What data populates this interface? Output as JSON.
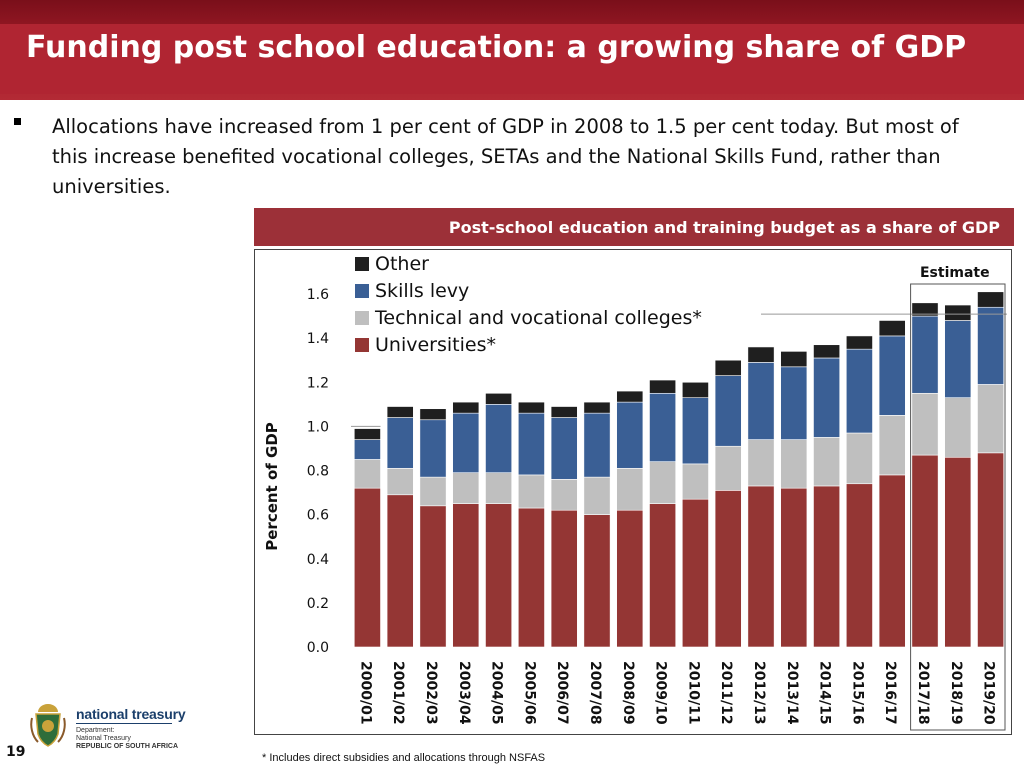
{
  "title": "Funding post school education: a growing share of GDP",
  "bullet": "Allocations have increased from 1 per cent of GDP in 2008 to 1.5 per cent today. But most of this increase benefited vocational colleges, SETAs and the National Skills Fund, rather than universities.",
  "footnote": "* Includes direct subsidies and allocations through NSFAS",
  "slide_number": "19",
  "logo": {
    "name": "national treasury",
    "lines": [
      "Department:",
      "National Treasury",
      "REPUBLIC OF SOUTH AFRICA"
    ]
  },
  "chart_data": {
    "type": "bar",
    "stacked": true,
    "title": "Post-school education and training budget as a share of GDP",
    "xlabel": "",
    "ylabel": "Percent of GDP",
    "ylim": [
      0,
      1.6
    ],
    "yticks": [
      "0.0",
      "0.2",
      "0.4",
      "0.6",
      "0.8",
      "1.0",
      "1.2",
      "1.4",
      "1.6"
    ],
    "grid": false,
    "legend_position": "top-left",
    "annotation": "Estimate",
    "estimate_categories": [
      "2017/18",
      "2018/19",
      "2019/20"
    ],
    "categories": [
      "2000/01",
      "2001/02",
      "2002/03",
      "2003/04",
      "2004/05",
      "2005/06",
      "2006/07",
      "2007/08",
      "2008/09",
      "2009/10",
      "2010/11",
      "2011/12",
      "2012/13",
      "2013/14",
      "2014/15",
      "2015/16",
      "2016/17",
      "2017/18",
      "2018/19",
      "2019/20"
    ],
    "series": [
      {
        "name": "Universities*",
        "color": "#943634",
        "values": [
          0.72,
          0.69,
          0.64,
          0.65,
          0.65,
          0.63,
          0.62,
          0.6,
          0.62,
          0.65,
          0.67,
          0.71,
          0.73,
          0.72,
          0.73,
          0.74,
          0.78,
          0.87,
          0.86,
          0.88
        ]
      },
      {
        "name": "Technical and vocational colleges*",
        "color": "#bfbfbf",
        "values": [
          0.13,
          0.12,
          0.13,
          0.14,
          0.14,
          0.15,
          0.14,
          0.17,
          0.19,
          0.19,
          0.16,
          0.2,
          0.21,
          0.22,
          0.22,
          0.23,
          0.27,
          0.28,
          0.27,
          0.31
        ]
      },
      {
        "name": "Skills levy",
        "color": "#3a5f95",
        "values": [
          0.09,
          0.23,
          0.26,
          0.27,
          0.31,
          0.28,
          0.28,
          0.29,
          0.3,
          0.31,
          0.3,
          0.32,
          0.35,
          0.33,
          0.36,
          0.38,
          0.36,
          0.35,
          0.35,
          0.35
        ]
      },
      {
        "name": "Other",
        "color": "#1f1f1f",
        "values": [
          0.05,
          0.05,
          0.05,
          0.05,
          0.05,
          0.05,
          0.05,
          0.05,
          0.05,
          0.06,
          0.07,
          0.07,
          0.07,
          0.07,
          0.06,
          0.06,
          0.07,
          0.06,
          0.07,
          0.07
        ]
      }
    ]
  }
}
